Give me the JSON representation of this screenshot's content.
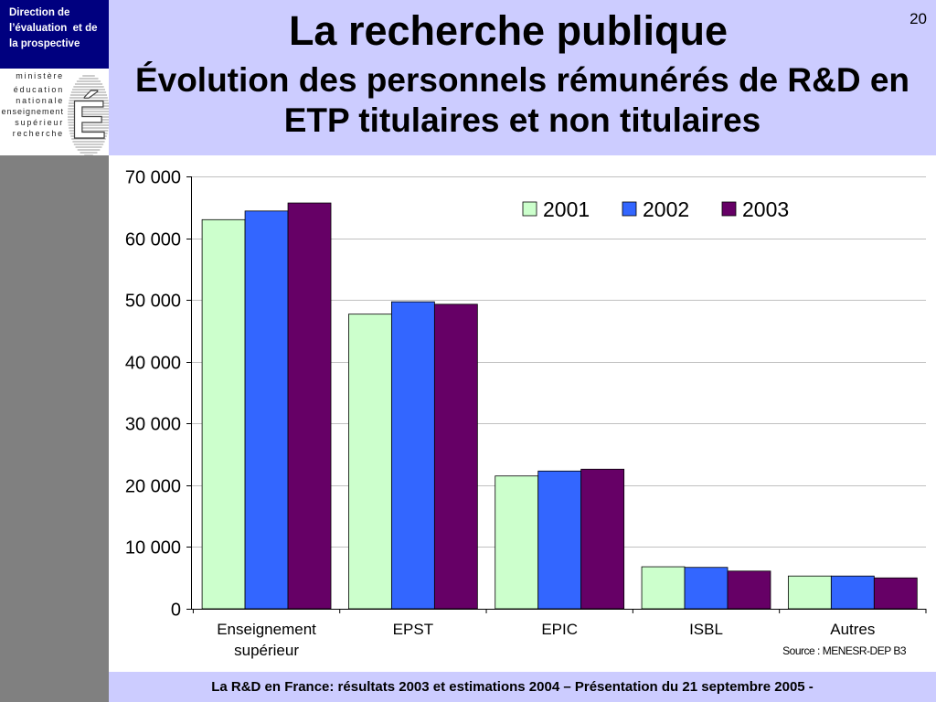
{
  "org_box": {
    "lines": [
      "Direction de",
      "l’évaluation  et de",
      "la prospective"
    ]
  },
  "logo": {
    "lines": [
      "ministère",
      "éducation",
      "nationale",
      "enseignement",
      "supérieur",
      "recherche"
    ],
    "emblem_letter": "É"
  },
  "slide": {
    "page_number": "20",
    "title": "La recherche publique",
    "subtitle_lines": [
      "Évolution des personnels rémunérés de R&D en",
      "ETP titulaires et non titulaires"
    ]
  },
  "colors": {
    "header_background": "#CCCCFF",
    "org_box_background": "#00007F",
    "side_band": "#808080",
    "gridline": "#C0C0C0"
  },
  "chart_data": {
    "type": "bar",
    "categories": [
      "Enseignement supérieur",
      "EPST",
      "EPIC",
      "ISBL",
      "Autres"
    ],
    "series": [
      {
        "name": "2001",
        "color": "#CCFFCC",
        "values": [
          63000,
          47700,
          21500,
          6800,
          5300
        ]
      },
      {
        "name": "2002",
        "color": "#3366FF",
        "values": [
          64400,
          49700,
          22300,
          6700,
          5300
        ]
      },
      {
        "name": "2003",
        "color": "#660066",
        "values": [
          65700,
          49300,
          22600,
          6100,
          5000
        ]
      }
    ],
    "ylim": [
      0,
      70000
    ],
    "ytick_labels": [
      "0",
      "10 000",
      "20 000",
      "30 000",
      "40 000",
      "50 000",
      "60 000",
      "70 000"
    ],
    "grid": true,
    "legend": "top-right",
    "source": "Source : MENESR-DEP B3"
  },
  "footer": {
    "text": "La R&D en France: résultats 2003 et estimations 2004 – Présentation du 21 septembre 2005 -"
  }
}
